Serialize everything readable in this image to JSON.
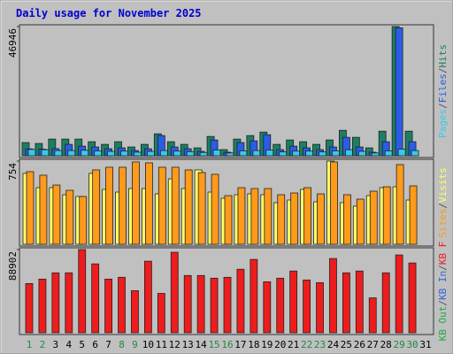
{
  "title": "Daily usage for November 2025",
  "categories": [
    "1",
    "2",
    "3",
    "4",
    "5",
    "6",
    "7",
    "8",
    "9",
    "10",
    "11",
    "12",
    "13",
    "14",
    "15",
    "16",
    "17",
    "18",
    "19",
    "20",
    "21",
    "22",
    "23",
    "24",
    "25",
    "26",
    "27",
    "28",
    "29",
    "30",
    "31"
  ],
  "weekends": [
    "1",
    "2",
    "8",
    "9",
    "15",
    "16",
    "22",
    "23",
    "29",
    "30"
  ],
  "weekend_color": "#228844",
  "weekday_color": "#000000",
  "separator": "/",
  "chart_data": [
    {
      "type": "bar",
      "ylim": [
        0,
        46946
      ],
      "yticks": [
        46946
      ],
      "series": [
        {
          "name": "Hits",
          "color": "#1a7f64",
          "values": [
            4790,
            4470,
            6060,
            6060,
            6060,
            5100,
            4150,
            5100,
            3190,
            4150,
            7980,
            5100,
            4150,
            2870,
            7020,
            2230,
            6060,
            7340,
            8610,
            4150,
            5740,
            5100,
            4150,
            5740,
            9250,
            6700,
            2870,
            8930,
            46946,
            8930,
            0
          ]
        },
        {
          "name": "Files",
          "color": "#2a5ce6",
          "values": [
            2500,
            2400,
            2600,
            4150,
            3500,
            3190,
            2550,
            2870,
            1910,
            2550,
            7340,
            3190,
            2550,
            1600,
            5740,
            1280,
            4790,
            5420,
            7660,
            2230,
            3500,
            2870,
            2230,
            3190,
            6700,
            3190,
            1280,
            5100,
            46500,
            5100,
            0
          ]
        },
        {
          "name": "Pages",
          "color": "#38c8ee",
          "values": [
            2300,
            2200,
            1900,
            1900,
            2000,
            1800,
            1600,
            1700,
            1300,
            1600,
            1900,
            1700,
            1500,
            1200,
            2100,
            1000,
            1800,
            1900,
            2100,
            1400,
            1700,
            1700,
            1400,
            1800,
            2200,
            1600,
            1000,
            1800,
            2400,
            1900,
            0
          ]
        }
      ]
    },
    {
      "type": "bar",
      "ylim": [
        0,
        754
      ],
      "yticks": [
        754
      ],
      "series": [
        {
          "name": "Visits",
          "color": "#ffff66",
          "values": [
            642,
            513,
            513,
            449,
            433,
            642,
            497,
            473,
            505,
            505,
            457,
            593,
            505,
            674,
            473,
            417,
            449,
            457,
            449,
            377,
            401,
            497,
            385,
            754,
            377,
            345,
            441,
            513,
            521,
            401,
            0
          ]
        },
        {
          "name": "Sites",
          "color": "#ff9a1a",
          "values": [
            658,
            626,
            537,
            489,
            433,
            674,
            698,
            698,
            746,
            738,
            698,
            698,
            674,
            650,
            634,
            441,
            513,
            505,
            505,
            449,
            465,
            513,
            457,
            746,
            449,
            409,
            481,
            521,
            722,
            529,
            0
          ]
        }
      ]
    },
    {
      "type": "bar",
      "ylim": [
        0,
        88902
      ],
      "yticks": [
        88902
      ],
      "series": [
        {
          "name": "KB F",
          "color": "#ee1c1c",
          "values": [
            52580,
            57360,
            64050,
            64050,
            88902,
            73610,
            57360,
            59270,
            44930,
            76480,
            42060,
            86040,
            61180,
            61180,
            58320,
            59270,
            67880,
            78390,
            54490,
            58320,
            65960,
            56400,
            53540,
            79350,
            64050,
            65960,
            37280,
            64050,
            83170,
            74570,
            0
          ]
        },
        {
          "name": "KB In",
          "color": "#3366dd"
        },
        {
          "name": "KB Out",
          "color": "#22aa44"
        }
      ]
    }
  ]
}
